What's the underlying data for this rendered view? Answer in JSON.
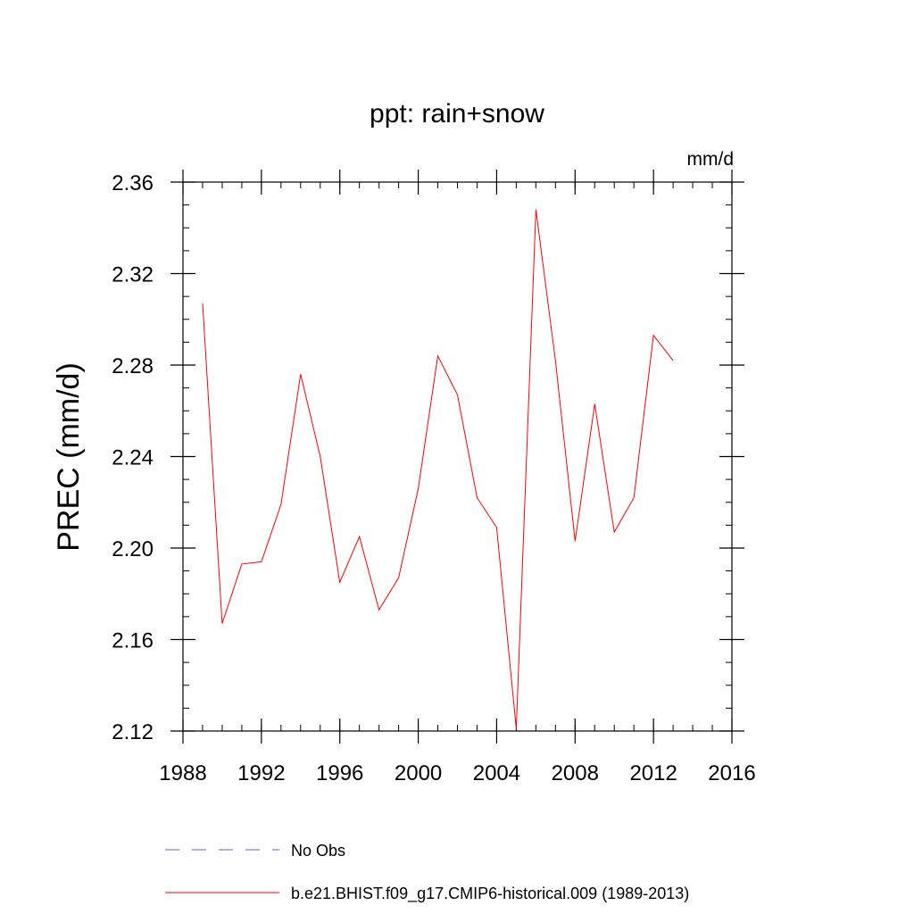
{
  "chart_data": {
    "type": "line",
    "title": "ppt: rain+snow",
    "units": "mm/d",
    "ylabel": "PREC  (mm/d)",
    "xlabel": "",
    "xlim": [
      1988,
      2016
    ],
    "ylim": [
      2.12,
      2.36
    ],
    "x_ticks": [
      1988,
      1992,
      1996,
      2000,
      2004,
      2008,
      2012,
      2016
    ],
    "x_tick_labels": [
      "1988",
      "1992",
      "1996",
      "2000",
      "2004",
      "2008",
      "2012",
      "2016"
    ],
    "y_ticks": [
      2.12,
      2.16,
      2.2,
      2.24,
      2.28,
      2.32,
      2.36
    ],
    "y_tick_labels": [
      "2.12",
      "2.16",
      "2.20",
      "2.24",
      "2.28",
      "2.32",
      "2.36"
    ],
    "x_minor_step": 1,
    "y_minor_step": 0.01,
    "grid": false,
    "legend_position": "bottom",
    "series": [
      {
        "name": "b.e21.BHIST.f09_g17.CMIP6-historical.009 (1989-2013)",
        "color": "#ff0000",
        "style": "solid",
        "x": [
          1989,
          1990,
          1991,
          1992,
          1993,
          1994,
          1995,
          1996,
          1997,
          1998,
          1999,
          2000,
          2001,
          2002,
          2003,
          2004,
          2005,
          2006,
          2007,
          2008,
          2009,
          2010,
          2011,
          2012,
          2013
        ],
        "values": [
          2.307,
          2.167,
          2.193,
          2.194,
          2.219,
          2.276,
          2.24,
          2.185,
          2.205,
          2.173,
          2.187,
          2.226,
          2.284,
          2.267,
          2.222,
          2.209,
          2.121,
          2.348,
          2.282,
          2.203,
          2.263,
          2.207,
          2.222,
          2.293,
          2.282
        ]
      }
    ],
    "legend": [
      {
        "label": "No Obs",
        "color": "#6a5acd",
        "style": "dashed"
      },
      {
        "label": "b.e21.BHIST.f09_g17.CMIP6-historical.009 (1989-2013)",
        "color": "#ff0000",
        "style": "solid"
      }
    ]
  }
}
